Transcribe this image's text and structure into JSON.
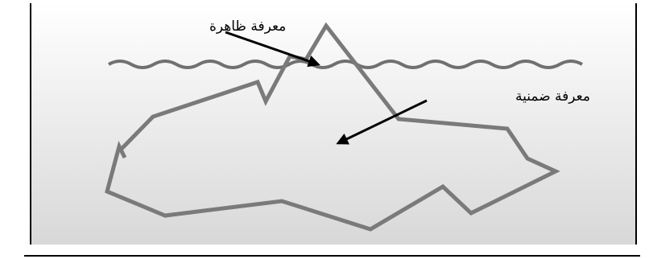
{
  "labels": {
    "explicit": "معرفة ظاهرة",
    "tacit": "معرفة ضمنية"
  }
}
